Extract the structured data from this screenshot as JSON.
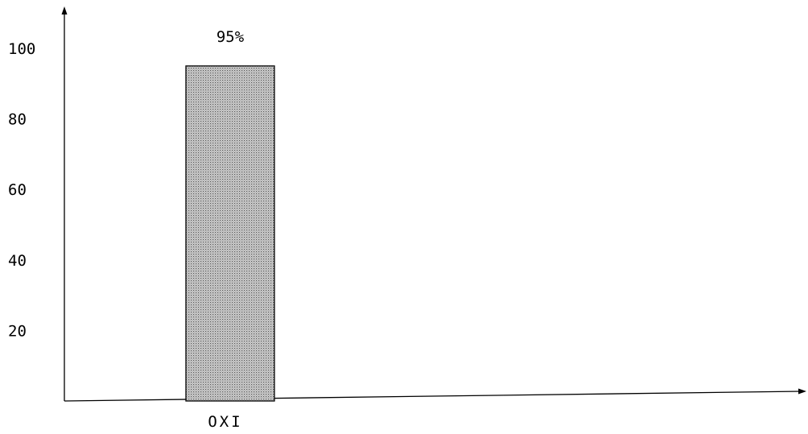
{
  "chart_data": {
    "type": "bar",
    "title": "",
    "xlabel": "",
    "ylabel": "",
    "categories": [
      "OXI"
    ],
    "values": [
      95
    ],
    "data_labels": [
      "95%"
    ],
    "yticks": [
      "20",
      "40",
      "60",
      "80",
      "100"
    ],
    "ylim": [
      0,
      120
    ],
    "grid": false,
    "bar_fill": "dotted gray"
  },
  "colors": {
    "axis": "#000000",
    "bar_dot": "#555555",
    "bar_bg": "#dcdcdc"
  }
}
